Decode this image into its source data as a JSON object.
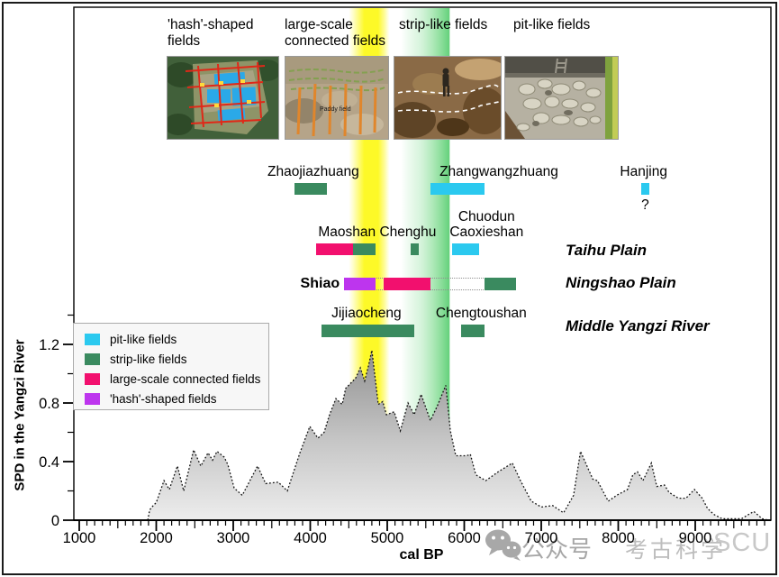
{
  "photo_panels": [
    {
      "label": "'hash'-shaped fields",
      "annotation": ""
    },
    {
      "label": "large-scale connected fields",
      "annotation": "Paddy field"
    },
    {
      "label": "strip-like fields",
      "annotation": ""
    },
    {
      "label": "pit-like fields",
      "annotation": ""
    }
  ],
  "regions": [
    {
      "label": "Taihu Plain"
    },
    {
      "label": "Ningshao Plain"
    },
    {
      "label": "Middle Yangzi River"
    }
  ],
  "legend": {
    "items": [
      {
        "type": "pit",
        "label": "pit-like fields"
      },
      {
        "type": "strip",
        "label": "strip-like fields"
      },
      {
        "type": "large",
        "label": "large-scale connected fields"
      },
      {
        "type": "hash",
        "label": "'hash'-shaped fields"
      }
    ]
  },
  "field_colors": {
    "pit": "#2bc9ef",
    "strip": "#3a8a5f",
    "large": "#f2106e",
    "hash": "#bd35ee"
  },
  "axes": {
    "x_title": "cal BP",
    "y_title": "SPD in the Yangzi River"
  },
  "watermark": {
    "icon": "wechat-icon",
    "account_label": "公众号",
    "name": "考古科学",
    "suffix": "SCU"
  },
  "chart_data": {
    "type": "area",
    "title": "",
    "xlabel": "cal BP",
    "ylabel": "SPD in the Yangzi River",
    "xlim": [
      1000,
      9980
    ],
    "ylim": [
      0,
      1.4
    ],
    "x_ticks": [
      1000,
      2000,
      3000,
      4000,
      5000,
      6000,
      7000,
      8000,
      9000
    ],
    "x_minor_step": 100,
    "y_ticks": [
      0,
      0.4,
      0.8,
      1.2
    ],
    "y_minor_ticks": [
      0.2,
      0.6,
      1.0,
      1.4
    ],
    "grid": false,
    "legend_position": "upper-left",
    "highlight_bands": [
      {
        "name": "yellow-phase-band",
        "from": 4500,
        "to": 5030,
        "color": "#fdf928"
      },
      {
        "name": "green-phase-band",
        "from": 5180,
        "to": 5810,
        "color": "#6fd584"
      }
    ],
    "sites": [
      {
        "name": "Zhaojiazhuang",
        "row": 1,
        "label_center_cal": 4040,
        "question_mark": "",
        "segments": [
          {
            "type": "strip",
            "from": 3800,
            "to": 4220
          }
        ]
      },
      {
        "name": "Zhangwangzhuang",
        "row": 1,
        "label_center_cal": 6450,
        "question_mark": "",
        "segments": [
          {
            "type": "pit",
            "from": 5560,
            "to": 6260
          }
        ]
      },
      {
        "name": "Hanjing",
        "row": 1,
        "label_center_cal": 8330,
        "question_mark": "?",
        "segments": [
          {
            "type": "pit",
            "from": 8300,
            "to": 8400
          }
        ]
      },
      {
        "name": "Maoshan Chenghu",
        "row": 2,
        "label_center_cal": 4870,
        "question_mark": "",
        "segments": [
          {
            "type": "large",
            "from": 4070,
            "to": 4560
          },
          {
            "type": "strip",
            "from": 4560,
            "to": 4850
          },
          {
            "type": "strip",
            "from": 5300,
            "to": 5410
          }
        ]
      },
      {
        "name": "Chuodun Caoxieshan",
        "row": 2,
        "label_lines": [
          "Chuodun",
          "Caoxieshan"
        ],
        "label_center_cal": 6290,
        "question_mark": "",
        "segments": [
          {
            "type": "pit",
            "from": 5840,
            "to": 6190
          }
        ]
      },
      {
        "name": "Shiao",
        "row": 3,
        "label_position": "left",
        "question_mark": "",
        "outline": {
          "from": 4440,
          "to": 6670
        },
        "segments": [
          {
            "type": "hash",
            "from": 4440,
            "to": 4850
          },
          {
            "type": "large",
            "from": 4950,
            "to": 5560
          },
          {
            "type": "strip",
            "from": 6260,
            "to": 6670
          }
        ]
      },
      {
        "name": "Jijiaocheng",
        "row": 4,
        "label_center_cal": 4730,
        "question_mark": "",
        "segments": [
          {
            "type": "strip",
            "from": 4150,
            "to": 5350
          }
        ]
      },
      {
        "name": "Chengtoushan",
        "row": 4,
        "label_center_cal": 6220,
        "question_mark": "",
        "segments": [
          {
            "type": "strip",
            "from": 5960,
            "to": 6260
          }
        ]
      }
    ],
    "spd_curve": [
      [
        1890,
        0
      ],
      [
        1915,
        0.07
      ],
      [
        1960,
        0.1
      ],
      [
        2000,
        0.12
      ],
      [
        2100,
        0.27
      ],
      [
        2170,
        0.21
      ],
      [
        2275,
        0.37
      ],
      [
        2357,
        0.2
      ],
      [
        2485,
        0.48
      ],
      [
        2579,
        0.37
      ],
      [
        2672,
        0.46
      ],
      [
        2731,
        0.41
      ],
      [
        2789,
        0.47
      ],
      [
        2883,
        0.43
      ],
      [
        2930,
        0.38
      ],
      [
        3012,
        0.22
      ],
      [
        3117,
        0.17
      ],
      [
        3316,
        0.37
      ],
      [
        3421,
        0.25
      ],
      [
        3585,
        0.26
      ],
      [
        3702,
        0.2
      ],
      [
        3866,
        0.46
      ],
      [
        3994,
        0.64
      ],
      [
        4100,
        0.56
      ],
      [
        4180,
        0.6
      ],
      [
        4250,
        0.72
      ],
      [
        4333,
        0.83
      ],
      [
        4415,
        0.79
      ],
      [
        4460,
        0.9
      ],
      [
        4590,
        0.97
      ],
      [
        4650,
        1.04
      ],
      [
        4707,
        0.95
      ],
      [
        4754,
        1.05
      ],
      [
        4800,
        1.16
      ],
      [
        4848,
        0.95
      ],
      [
        4883,
        0.79
      ],
      [
        4941,
        0.81
      ],
      [
        4990,
        0.72
      ],
      [
        5090,
        0.74
      ],
      [
        5170,
        0.61
      ],
      [
        5270,
        0.8
      ],
      [
        5350,
        0.72
      ],
      [
        5440,
        0.86
      ],
      [
        5560,
        0.68
      ],
      [
        5650,
        0.78
      ],
      [
        5760,
        0.92
      ],
      [
        5820,
        0.61
      ],
      [
        5890,
        0.44
      ],
      [
        6030,
        0.44
      ],
      [
        6080,
        0.45
      ],
      [
        6150,
        0.31
      ],
      [
        6280,
        0.27
      ],
      [
        6440,
        0.33
      ],
      [
        6625,
        0.39
      ],
      [
        6730,
        0.27
      ],
      [
        6870,
        0.13
      ],
      [
        7000,
        0.09
      ],
      [
        7150,
        0.1
      ],
      [
        7290,
        0.05
      ],
      [
        7420,
        0.17
      ],
      [
        7510,
        0.47
      ],
      [
        7610,
        0.35
      ],
      [
        7670,
        0.28
      ],
      [
        7730,
        0.27
      ],
      [
        7790,
        0.21
      ],
      [
        7870,
        0.13
      ],
      [
        7980,
        0.17
      ],
      [
        8120,
        0.21
      ],
      [
        8190,
        0.31
      ],
      [
        8250,
        0.33
      ],
      [
        8320,
        0.27
      ],
      [
        8430,
        0.39
      ],
      [
        8500,
        0.23
      ],
      [
        8600,
        0.24
      ],
      [
        8660,
        0.19
      ],
      [
        8780,
        0.15
      ],
      [
        8880,
        0.15
      ],
      [
        8990,
        0.21
      ],
      [
        9090,
        0.15
      ],
      [
        9160,
        0.08
      ],
      [
        9240,
        0.04
      ],
      [
        9350,
        0.01
      ],
      [
        9600,
        0.01
      ],
      [
        9760,
        0.06
      ],
      [
        9870,
        0.01
      ],
      [
        9950,
        0
      ]
    ]
  }
}
